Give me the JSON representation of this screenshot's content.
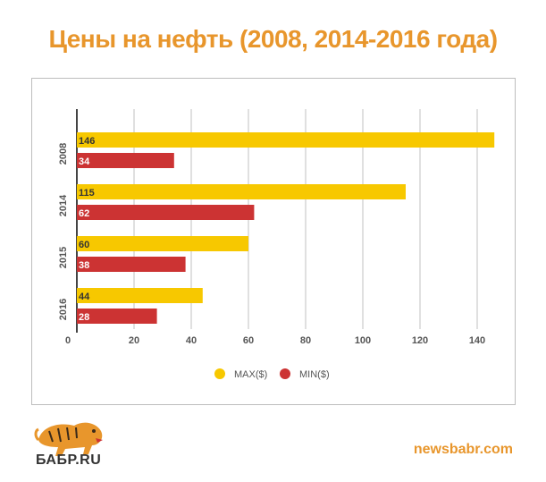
{
  "title": "Цены на нефть (2008, 2014-2016 года)",
  "colors": {
    "title": "#E8962C",
    "max": "#F7C800",
    "min": "#CC3333",
    "site": "#E8962C",
    "grid": "#d6d6d6",
    "axis": "#444444"
  },
  "chart_data": {
    "type": "bar",
    "orientation": "horizontal",
    "categories": [
      "2008",
      "2014",
      "2015",
      "2016"
    ],
    "series": [
      {
        "name": "MAX($)",
        "values": [
          146,
          115,
          60,
          44
        ]
      },
      {
        "name": "MIN($)",
        "values": [
          34,
          62,
          38,
          28
        ]
      }
    ],
    "xlim": [
      0,
      150
    ],
    "xticks": [
      0,
      20,
      40,
      60,
      80,
      100,
      120,
      140
    ],
    "grid": true,
    "legend": "bottom-center"
  },
  "logo": {
    "text": "БАБР.RU",
    "icon": "tiger-icon"
  },
  "site": "newsbabr.com"
}
